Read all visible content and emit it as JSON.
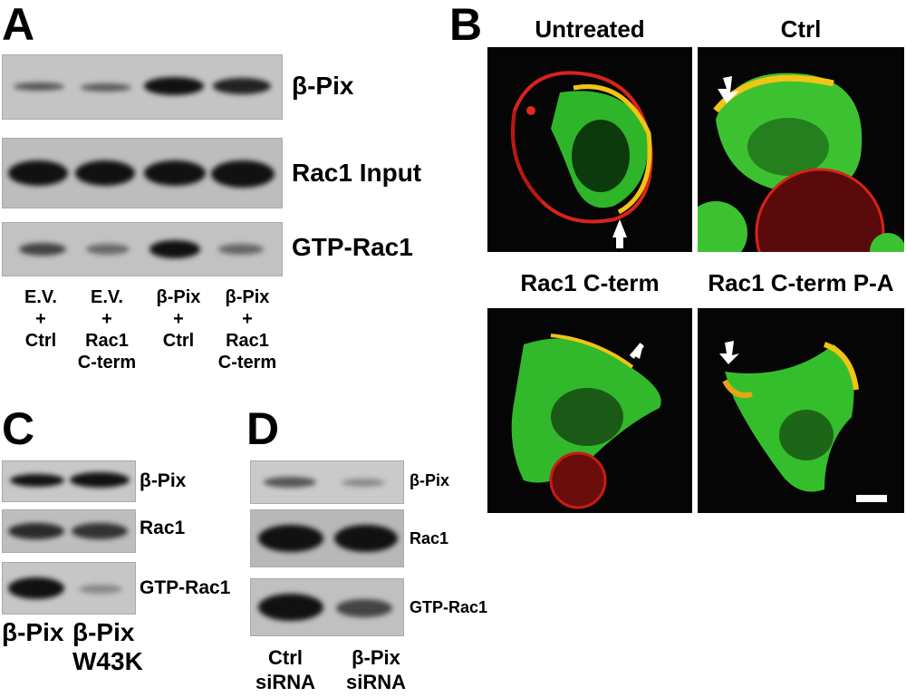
{
  "panelA": {
    "letter": "A",
    "blot_labels": [
      "β-Pix",
      "Rac1 Input",
      "GTP-Rac1"
    ],
    "lanes": [
      [
        "E.V.",
        "+",
        "Ctrl"
      ],
      [
        "E.V.",
        "+",
        "Rac1",
        "C-term"
      ],
      [
        "β-Pix",
        "+",
        "Ctrl"
      ],
      [
        "β-Pix",
        "+",
        "Rac1",
        "C-term"
      ]
    ]
  },
  "panelB": {
    "letter": "B",
    "titles": [
      "Untreated",
      "Ctrl",
      "Rac1 C-term",
      "Rac1 C-term P-A"
    ]
  },
  "panelC": {
    "letter": "C",
    "blot_labels": [
      "β-Pix",
      "Rac1",
      "GTP-Rac1"
    ],
    "lanes": [
      [
        "β-Pix"
      ],
      [
        "β-Pix",
        "W43K"
      ]
    ]
  },
  "panelD": {
    "letter": "D",
    "blot_labels": [
      "β-Pix",
      "Rac1",
      "GTP-Rac1"
    ],
    "lanes": [
      [
        "Ctrl",
        "siRNA"
      ],
      [
        "β-Pix",
        "siRNA"
      ]
    ]
  }
}
